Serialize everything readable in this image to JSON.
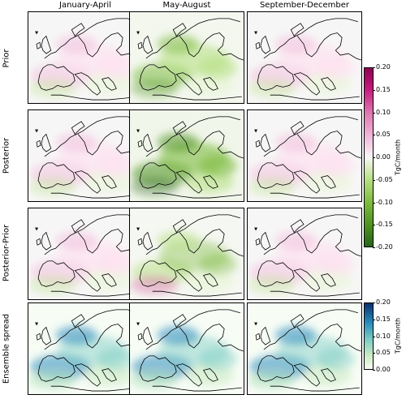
{
  "columns": [
    "January-April",
    "May-August",
    "September-December"
  ],
  "rows": [
    {
      "label": "Prior",
      "kind": "diverging"
    },
    {
      "label": "Posterior",
      "kind": "diverging"
    },
    {
      "label": "Posterior-Prior",
      "kind": "diverging"
    },
    {
      "label": "Ensemble spread",
      "kind": "sequential"
    }
  ],
  "colorbars": [
    {
      "unit": "TgC/month",
      "ticks": [
        "0.20",
        "0.15",
        "0.10",
        "0.05",
        "0.00",
        "-0.05",
        "-0.10",
        "-0.15",
        "-0.20"
      ],
      "range": [
        -0.2,
        0.2
      ],
      "colors": [
        "#8e0152",
        "#f7f7f7",
        "#276419"
      ]
    },
    {
      "unit": "TgC/month",
      "ticks": [
        "0.20",
        "0.15",
        "0.10",
        "0.05",
        "0.00"
      ],
      "range": [
        0.0,
        0.2
      ],
      "colors": [
        "#08306b",
        "#2b8cbe",
        "#a8ddb5",
        "#f7fcf0"
      ]
    }
  ]
}
